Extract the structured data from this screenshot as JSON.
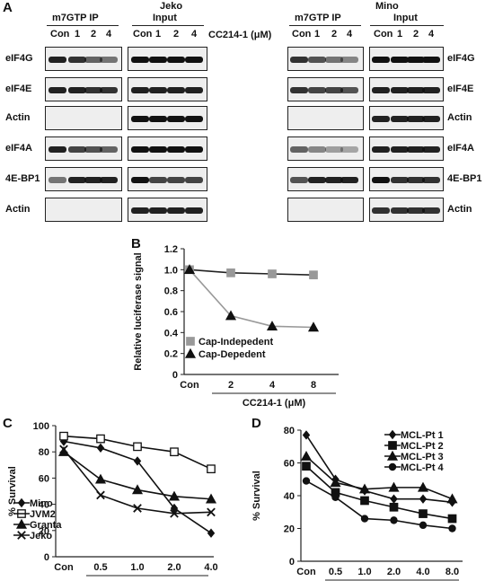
{
  "panels": {
    "A": "A",
    "B": "B",
    "C": "C",
    "D": "D"
  },
  "blots": {
    "jeko": {
      "cell_line": "Jeko",
      "ip_label": "m7GTP IP",
      "input_label": "Input",
      "lanes": [
        "Con",
        "1",
        "2",
        "4",
        "Con",
        "1",
        "2",
        "4"
      ],
      "treatment": "CC214-1 (μM)",
      "rows": [
        {
          "label": "eIF4G",
          "ip": [
            0.9,
            0.8,
            0.5,
            0.4
          ],
          "input": [
            1,
            1,
            1,
            1
          ]
        },
        {
          "label": "eIF4E",
          "ip": [
            0.9,
            0.9,
            0.8,
            0.8
          ],
          "input": [
            0.9,
            0.9,
            0.9,
            0.9
          ]
        },
        {
          "label": "Actin",
          "ip": [
            0,
            0,
            0,
            0
          ],
          "input": [
            1,
            1,
            1,
            1
          ]
        },
        {
          "label": "eIF4A",
          "ip": [
            0.9,
            0.7,
            0.6,
            0.5
          ],
          "input": [
            1,
            1,
            1,
            1
          ]
        },
        {
          "label": "4E-BP1",
          "ip": [
            0.4,
            0.9,
            0.9,
            0.9
          ],
          "input": [
            1,
            0.7,
            0.7,
            0.7
          ]
        },
        {
          "label": "Actin",
          "ip": [
            0,
            0,
            0,
            0
          ],
          "input": [
            0.9,
            0.9,
            0.9,
            0.9
          ]
        }
      ]
    },
    "mino": {
      "cell_line": "Mino",
      "ip_label": "m7GTP IP",
      "input_label": "Input",
      "lanes": [
        "Con",
        "1",
        "2",
        "4",
        "Con",
        "1",
        "2",
        "4"
      ],
      "rows": [
        {
          "label": "eIF4G",
          "ip": [
            0.8,
            0.6,
            0.4,
            0.3
          ],
          "input": [
            1,
            1,
            1,
            1
          ]
        },
        {
          "label": "eIF4E",
          "ip": [
            0.8,
            0.7,
            0.7,
            0.6
          ],
          "input": [
            0.9,
            0.9,
            0.9,
            0.9
          ]
        },
        {
          "label": "Actin",
          "ip": [
            0,
            0,
            0,
            0
          ],
          "input": [
            0.9,
            0.9,
            0.9,
            0.9
          ]
        },
        {
          "label": "eIF4A",
          "ip": [
            0.5,
            0.3,
            0.15,
            0.1
          ],
          "input": [
            0.9,
            0.9,
            0.9,
            0.9
          ]
        },
        {
          "label": "4E-BP1",
          "ip": [
            0.6,
            0.9,
            0.9,
            0.9
          ],
          "input": [
            1,
            0.8,
            0.8,
            0.8
          ]
        },
        {
          "label": "Actin",
          "ip": [
            0,
            0,
            0,
            0
          ],
          "input": [
            0.8,
            0.8,
            0.8,
            0.8
          ]
        }
      ]
    }
  },
  "chart_data": [
    {
      "panel": "B",
      "type": "line",
      "categories": [
        "Con",
        "2",
        "4",
        "8"
      ],
      "xlabel": "CC214-1 (μM)",
      "ylabel": "Relative luciferase signal",
      "ylim": [
        0,
        1.2
      ],
      "yticks": [
        "0",
        "0.2",
        "0.4",
        "0.6",
        "0.8",
        "1.0",
        "1.2"
      ],
      "legend_position": "bottom-left",
      "series": [
        {
          "name": "Cap-Indepedent",
          "marker": "square",
          "line_color": "#222222",
          "marker_color": "#999999",
          "values": [
            1.0,
            0.97,
            0.96,
            0.95
          ]
        },
        {
          "name": "Cap-Depedent",
          "marker": "triangle",
          "line_color": "#999999",
          "marker_color": "#111111",
          "values": [
            1.0,
            0.56,
            0.46,
            0.45
          ]
        }
      ]
    },
    {
      "panel": "C",
      "type": "line",
      "categories": [
        "Con",
        "0.5",
        "1.0",
        "2.0",
        "4.0"
      ],
      "xlabel": "CC214-1 (μM)",
      "ylabel": "% Survival",
      "ylim": [
        0,
        100
      ],
      "yticks": [
        "0",
        "20",
        "40",
        "60",
        "80",
        "100"
      ],
      "legend_position": "bottom-left",
      "series": [
        {
          "name": "Mino",
          "marker": "diamond",
          "values": [
            88,
            83,
            73,
            37,
            18
          ]
        },
        {
          "name": "JVM2",
          "marker": "open-square",
          "values": [
            92,
            90,
            84,
            80,
            67
          ]
        },
        {
          "name": "Granta",
          "marker": "triangle",
          "values": [
            80,
            59,
            51,
            46,
            44
          ]
        },
        {
          "name": "Jeko",
          "marker": "x",
          "values": [
            82,
            47,
            37,
            33,
            34
          ]
        }
      ]
    },
    {
      "panel": "D",
      "type": "line",
      "categories": [
        "Con",
        "0.5",
        "1.0",
        "2.0",
        "4.0",
        "8.0"
      ],
      "xlabel": "CC214-1 (μM)",
      "ylabel": "% Survival",
      "ylim": [
        0,
        80
      ],
      "yticks": [
        "0",
        "20",
        "40",
        "60",
        "80"
      ],
      "legend_position": "top-right",
      "series": [
        {
          "name": "MCL-Pt 1",
          "marker": "diamond",
          "values": [
            77,
            50,
            43,
            38,
            38,
            36
          ]
        },
        {
          "name": "MCL-Pt 2",
          "marker": "square",
          "values": [
            58,
            42,
            37,
            33,
            29,
            26
          ]
        },
        {
          "name": "MCL-Pt 3",
          "marker": "triangle",
          "values": [
            64,
            48,
            44,
            45,
            45,
            38
          ]
        },
        {
          "name": "MCL-Pt 4",
          "marker": "circle",
          "values": [
            49,
            39,
            26,
            25,
            22,
            20
          ]
        }
      ]
    }
  ]
}
